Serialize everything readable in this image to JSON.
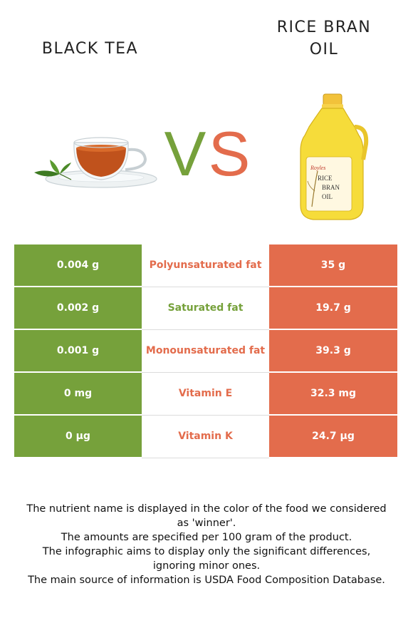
{
  "header": {
    "left_food": "BLACK TEA",
    "right_food_line1": "RICE BRAN",
    "right_food_line2": "OIL",
    "vs_v": "V",
    "vs_s": "S"
  },
  "colors": {
    "left": "#76a13b",
    "right": "#e36c4c"
  },
  "rows": [
    {
      "left": "0.004 g",
      "nutrient": "Polyunsaturated fat",
      "right": "35 g",
      "winner": "right"
    },
    {
      "left": "0.002 g",
      "nutrient": "Saturated fat",
      "right": "19.7 g",
      "winner": "left"
    },
    {
      "left": "0.001 g",
      "nutrient": "Monounsaturated fat",
      "right": "39.3 g",
      "winner": "right"
    },
    {
      "left": "0 mg",
      "nutrient": "Vitamin E",
      "right": "32.3 mg",
      "winner": "right"
    },
    {
      "left": "0 µg",
      "nutrient": "Vitamin K",
      "right": "24.7 µg",
      "winner": "right"
    }
  ],
  "oil_label": {
    "brand": "Royles",
    "line1": "RICE",
    "line2": "BRAN",
    "line3": "OIL"
  },
  "notes": [
    "The nutrient name is displayed in the color of the food we considered as 'winner'.",
    "The amounts are specified per 100 gram of the product.",
    "The infographic aims to display only the significant differences, ignoring minor ones.",
    "The main source of information is USDA Food Composition Database."
  ]
}
